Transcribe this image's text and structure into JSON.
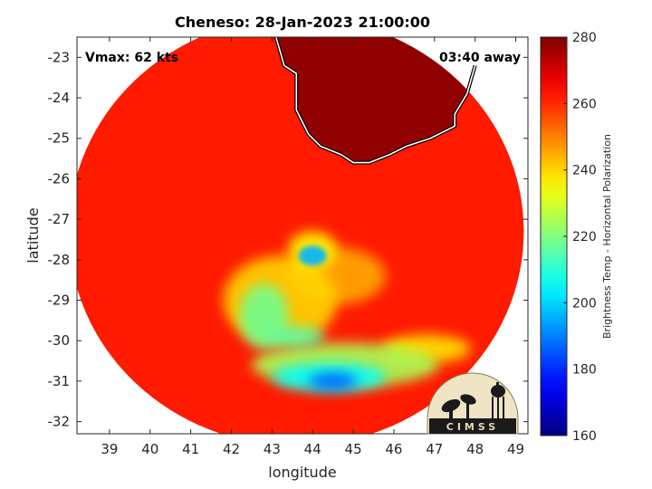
{
  "chart_data": {
    "type": "heatmap",
    "title": "Cheneso: 28-Jan-2023 21:00:00",
    "xlabel": "longitude",
    "ylabel": "latitude",
    "xlim": [
      38.2,
      49.3
    ],
    "ylim": [
      -32.3,
      -22.5
    ],
    "xticks": [
      39,
      40,
      41,
      42,
      43,
      44,
      45,
      46,
      47,
      48,
      49
    ],
    "yticks": [
      -23,
      -24,
      -25,
      -26,
      -27,
      -28,
      -29,
      -30,
      -31,
      -32
    ],
    "grid": true,
    "colorbar": {
      "label": "Brightness Temp - Horizontal Polarization",
      "min": 160,
      "max": 280,
      "ticks": [
        280,
        260,
        240,
        220,
        200,
        180,
        160
      ],
      "colormap": "jet"
    },
    "annotations": {
      "vmax": "Vmax: 62 kts",
      "time_offset": "03:40 away"
    },
    "swath": {
      "center": [
        43.6,
        -27.3
      ],
      "lon_radius": 5.6,
      "lat_radius": 5.3,
      "background_temp": 262
    },
    "coastline": [
      [
        43.1,
        -22.5
      ],
      [
        43.3,
        -23.2
      ],
      [
        43.6,
        -23.4
      ],
      [
        43.6,
        -24.3
      ],
      [
        43.9,
        -24.9
      ],
      [
        44.2,
        -25.2
      ],
      [
        44.7,
        -25.4
      ],
      [
        45.0,
        -25.6
      ],
      [
        45.4,
        -25.6
      ],
      [
        45.9,
        -25.4
      ],
      [
        46.3,
        -25.2
      ],
      [
        46.9,
        -25.0
      ],
      [
        47.1,
        -24.9
      ],
      [
        47.5,
        -24.7
      ],
      [
        47.5,
        -24.4
      ],
      [
        47.8,
        -23.9
      ],
      [
        48.0,
        -23.2
      ]
    ],
    "features": [
      {
        "lon": 44.0,
        "lat": -27.9,
        "temp": 196,
        "rx": 0.35,
        "ry": 0.25
      },
      {
        "lon": 44.0,
        "lat": -27.75,
        "temp": 235,
        "rx": 0.6,
        "ry": 0.45
      },
      {
        "lon": 44.5,
        "lat": -31.0,
        "temp": 185,
        "rx": 0.6,
        "ry": 0.2
      },
      {
        "lon": 44.4,
        "lat": -30.9,
        "temp": 205,
        "rx": 1.4,
        "ry": 0.35
      },
      {
        "lon": 44.8,
        "lat": -30.6,
        "temp": 225,
        "rx": 2.3,
        "ry": 0.55
      },
      {
        "lon": 42.8,
        "lat": -29.4,
        "temp": 218,
        "rx": 0.6,
        "ry": 0.8
      },
      {
        "lon": 43.6,
        "lat": -29.9,
        "temp": 215,
        "rx": 0.7,
        "ry": 0.25
      },
      {
        "lon": 46.8,
        "lat": -30.2,
        "temp": 238,
        "rx": 1.1,
        "ry": 0.35
      },
      {
        "lon": 43.2,
        "lat": -29.0,
        "temp": 240,
        "rx": 1.4,
        "ry": 1.1
      },
      {
        "lon": 44.6,
        "lat": -28.4,
        "temp": 245,
        "rx": 1.2,
        "ry": 0.7
      }
    ]
  }
}
